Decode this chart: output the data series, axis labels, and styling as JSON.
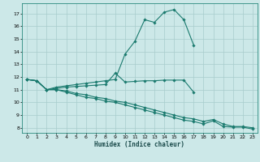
{
  "xlabel": "Humidex (Indice chaleur)",
  "bg_color": "#cce8e8",
  "grid_color": "#a8cccc",
  "line_color": "#1a7a6e",
  "xlim": [
    -0.5,
    23.5
  ],
  "ylim": [
    7.6,
    17.8
  ],
  "yticks": [
    8,
    9,
    10,
    11,
    12,
    13,
    14,
    15,
    16,
    17
  ],
  "xticks": [
    0,
    1,
    2,
    3,
    4,
    5,
    6,
    7,
    8,
    9,
    10,
    11,
    12,
    13,
    14,
    15,
    16,
    17,
    18,
    19,
    20,
    21,
    22,
    23
  ],
  "series": [
    {
      "x": [
        0,
        1,
        2,
        3,
        4,
        5,
        6,
        7,
        8,
        9,
        10,
        11,
        12,
        13,
        14,
        15,
        16,
        17
      ],
      "y": [
        11.8,
        11.7,
        11.0,
        11.1,
        11.2,
        11.25,
        11.3,
        11.35,
        11.4,
        12.3,
        11.6,
        11.65,
        11.7,
        11.7,
        11.75,
        11.75,
        11.75,
        10.8
      ]
    },
    {
      "x": [
        0,
        1,
        2,
        3,
        4,
        5,
        6,
        7,
        8,
        9,
        10,
        11,
        12,
        13,
        14,
        15,
        16,
        17
      ],
      "y": [
        11.8,
        11.7,
        11.0,
        11.2,
        11.3,
        11.4,
        11.5,
        11.6,
        11.7,
        11.8,
        13.8,
        14.8,
        16.5,
        16.3,
        17.1,
        17.3,
        16.5,
        14.5
      ]
    },
    {
      "x": [
        0,
        1,
        2,
        3,
        4,
        5,
        6,
        7,
        8,
        9,
        10,
        11,
        12,
        13,
        14,
        15,
        16,
        17,
        18,
        19,
        20,
        21,
        22,
        23
      ],
      "y": [
        11.8,
        11.7,
        11.0,
        11.0,
        10.8,
        10.6,
        10.4,
        10.3,
        10.1,
        10.0,
        9.8,
        9.6,
        9.4,
        9.2,
        9.0,
        8.8,
        8.6,
        8.5,
        8.3,
        8.55,
        8.1,
        8.05,
        8.05,
        7.9
      ]
    },
    {
      "x": [
        0,
        1,
        2,
        3,
        4,
        5,
        6,
        7,
        8,
        9,
        10,
        11,
        12,
        13,
        14,
        15,
        16,
        17,
        18,
        19,
        20,
        21,
        22,
        23
      ],
      "y": [
        11.8,
        11.7,
        11.0,
        11.0,
        10.9,
        10.7,
        10.6,
        10.4,
        10.3,
        10.1,
        10.0,
        9.8,
        9.6,
        9.4,
        9.2,
        9.0,
        8.8,
        8.7,
        8.5,
        8.65,
        8.3,
        8.1,
        8.1,
        8.0
      ]
    }
  ]
}
